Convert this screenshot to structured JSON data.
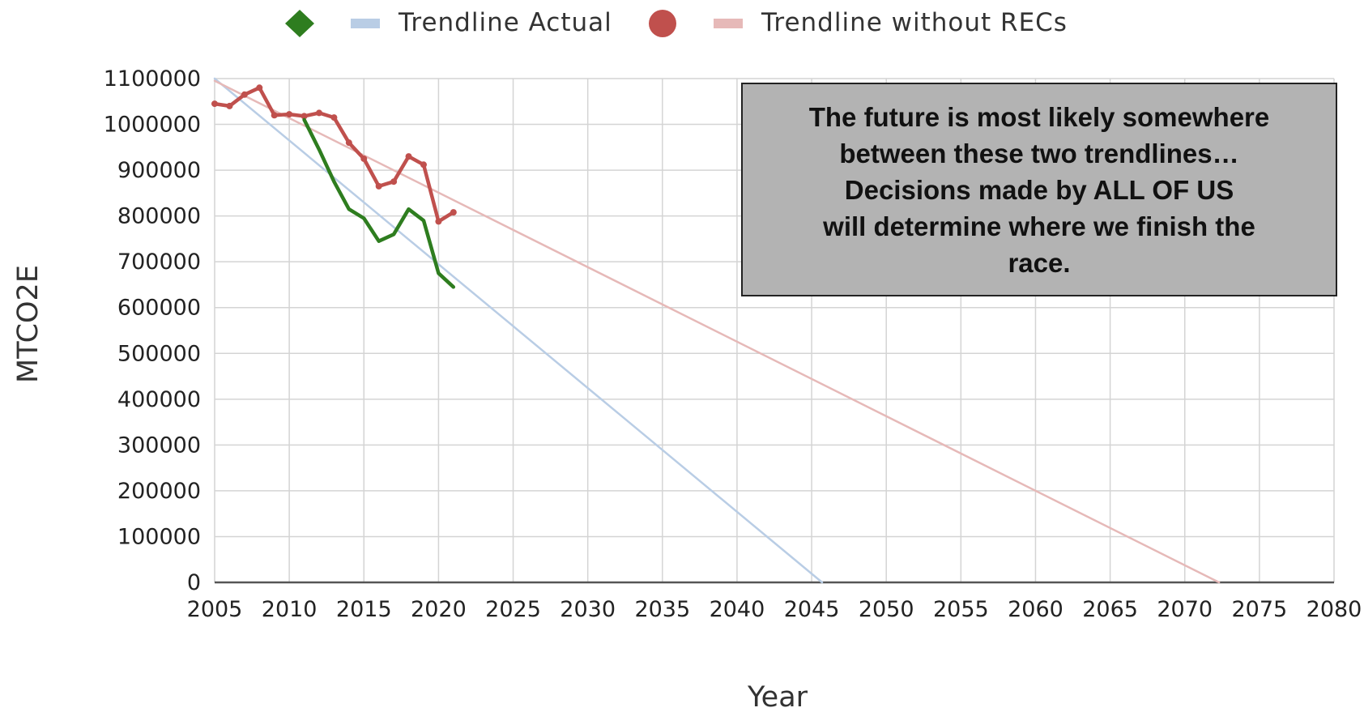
{
  "chart_data": {
    "type": "line",
    "title": "",
    "xlabel": "Year",
    "ylabel": "MTCO2E",
    "xlim": [
      2005,
      2080
    ],
    "ylim": [
      0,
      1100000
    ],
    "x_ticks": [
      2005,
      2010,
      2015,
      2020,
      2025,
      2030,
      2035,
      2040,
      2045,
      2050,
      2055,
      2060,
      2065,
      2070,
      2075,
      2080
    ],
    "y_ticks": [
      0,
      100000,
      200000,
      300000,
      400000,
      500000,
      600000,
      700000,
      800000,
      900000,
      1000000,
      1100000
    ],
    "grid": true,
    "legend_position": "top",
    "series": [
      {
        "name": "",
        "legend_marker": "diamond",
        "color": "#2e7d1f",
        "x": [
          2011,
          2012,
          2013,
          2014,
          2015,
          2016,
          2017,
          2018,
          2019,
          2020,
          2021
        ],
        "y": [
          1010000,
          945000,
          875000,
          815000,
          795000,
          745000,
          760000,
          815000,
          790000,
          675000,
          645000
        ]
      },
      {
        "name": "Trendline Actual",
        "color": "#b9cde5",
        "x": [
          2005,
          2045.7
        ],
        "y": [
          1100000,
          0
        ]
      },
      {
        "name": "",
        "legend_marker": "circle",
        "color": "#c0504d",
        "x": [
          2005,
          2006,
          2007,
          2008,
          2009,
          2010,
          2011,
          2012,
          2013,
          2014,
          2015,
          2016,
          2017,
          2018,
          2019,
          2020,
          2021
        ],
        "y": [
          1045000,
          1040000,
          1065000,
          1080000,
          1020000,
          1022000,
          1018000,
          1025000,
          1015000,
          960000,
          925000,
          865000,
          875000,
          930000,
          912000,
          788000,
          808000
        ]
      },
      {
        "name": "Trendline without RECs",
        "color": "#e6b9b8",
        "x": [
          2005,
          2072.3
        ],
        "y": [
          1095000,
          0
        ]
      }
    ],
    "annotations": [
      "The future is most likely somewhere\nbetween these two trendlines…\nDecisions made by ALL OF US\nwill determine where we finish the\nrace."
    ]
  }
}
